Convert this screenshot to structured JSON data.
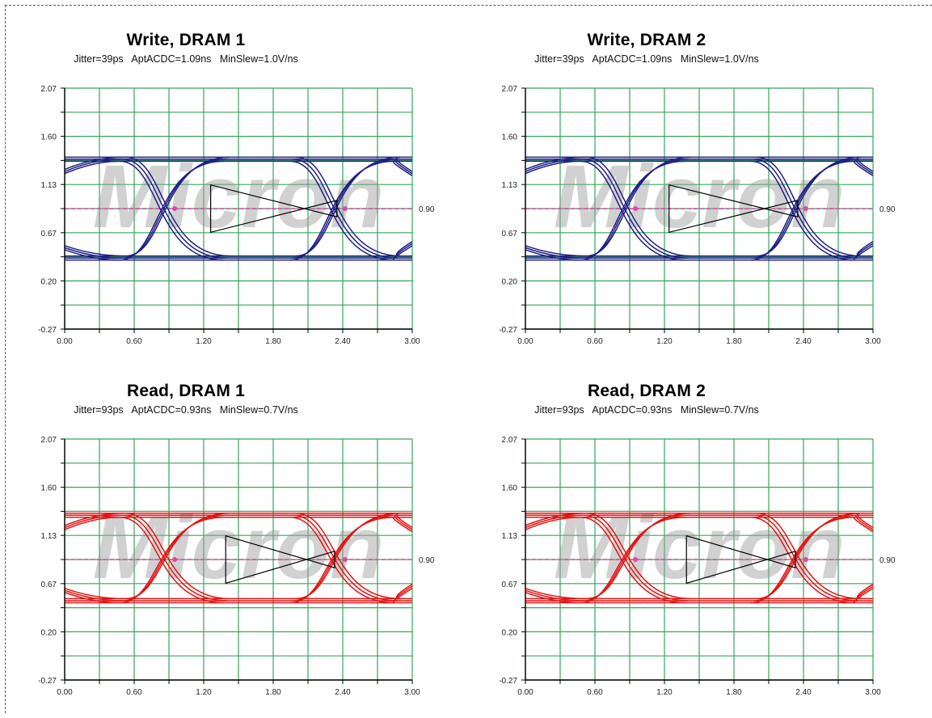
{
  "colors": {
    "write": "#1f1f85",
    "read": "#e31414",
    "grid": "#37a55a",
    "ref": "#e046a8",
    "mask": "#000000",
    "watermark": "#9a9a9a"
  },
  "watermark": "Micron",
  "chart_data": [
    {
      "type": "line",
      "title": "Write, DRAM 1",
      "stats": [
        "Jitter=39ps",
        "AptACDC=1.09ns",
        "MinSlew=1.0V/ns"
      ],
      "series_color": "write",
      "xlim": [
        0,
        3
      ],
      "ylim": [
        -0.27,
        2.07
      ],
      "xticks": [
        "0.00",
        "0.60",
        "1.20",
        "1.80",
        "2.40",
        "3.00"
      ],
      "yticks": [
        "-0.27",
        "0.20",
        "0.67",
        "1.13",
        "1.60",
        "2.07"
      ],
      "ref_level": 0.9,
      "ref_label": "0.90",
      "high": 1.38,
      "low": 0.42,
      "crossings": [
        0.95,
        2.42
      ],
      "cross_v": 0.9,
      "mask": {
        "x1": 1.26,
        "x2": 2.35,
        "y_top": 1.13,
        "y_bot": 0.67,
        "y_tip": 0.9
      }
    },
    {
      "type": "line",
      "title": "Write, DRAM 2",
      "stats": [
        "Jitter=39ps",
        "AptACDC=1.09ns",
        "MinSlew=1.0V/ns"
      ],
      "series_color": "write",
      "xlim": [
        0,
        3
      ],
      "ylim": [
        -0.27,
        2.07
      ],
      "xticks": [
        "0.00",
        "0.60",
        "1.20",
        "1.80",
        "2.40",
        "3.00"
      ],
      "yticks": [
        "-0.27",
        "0.20",
        "0.67",
        "1.13",
        "1.60",
        "2.07"
      ],
      "ref_level": 0.9,
      "ref_label": "0.90",
      "high": 1.38,
      "low": 0.42,
      "crossings": [
        0.95,
        2.42
      ],
      "cross_v": 0.9,
      "mask": {
        "x1": 1.24,
        "x2": 2.35,
        "y_top": 1.13,
        "y_bot": 0.67,
        "y_tip": 0.9
      }
    },
    {
      "type": "line",
      "title": "Read, DRAM 1",
      "stats": [
        "Jitter=93ps",
        "AptACDC=0.93ns",
        "MinSlew=0.7V/ns"
      ],
      "series_color": "read",
      "xlim": [
        0,
        3
      ],
      "ylim": [
        -0.27,
        2.07
      ],
      "xticks": [
        "0.00",
        "0.60",
        "1.20",
        "1.80",
        "2.40",
        "3.00"
      ],
      "yticks": [
        "-0.27",
        "0.20",
        "0.67",
        "1.13",
        "1.60",
        "2.07"
      ],
      "ref_level": 0.9,
      "ref_label": "0.90",
      "high": 1.33,
      "low": 0.5,
      "crossings": [
        0.95,
        2.42
      ],
      "cross_v": 0.9,
      "mask": {
        "x1": 1.39,
        "x2": 2.33,
        "y_top": 1.13,
        "y_bot": 0.67,
        "y_tip": 0.9
      }
    },
    {
      "type": "line",
      "title": "Read, DRAM 2",
      "stats": [
        "Jitter=93ps",
        "AptACDC=0.93ns",
        "MinSlew=0.7V/ns"
      ],
      "series_color": "read",
      "xlim": [
        0,
        3
      ],
      "ylim": [
        -0.27,
        2.07
      ],
      "xticks": [
        "0.00",
        "0.60",
        "1.20",
        "1.80",
        "2.40",
        "3.00"
      ],
      "yticks": [
        "-0.27",
        "0.20",
        "0.67",
        "1.13",
        "1.60",
        "2.07"
      ],
      "ref_level": 0.9,
      "ref_label": "0.90",
      "high": 1.33,
      "low": 0.5,
      "crossings": [
        0.95,
        2.42
      ],
      "cross_v": 0.9,
      "mask": {
        "x1": 1.39,
        "x2": 2.33,
        "y_top": 1.13,
        "y_bot": 0.67,
        "y_tip": 0.9
      }
    }
  ]
}
